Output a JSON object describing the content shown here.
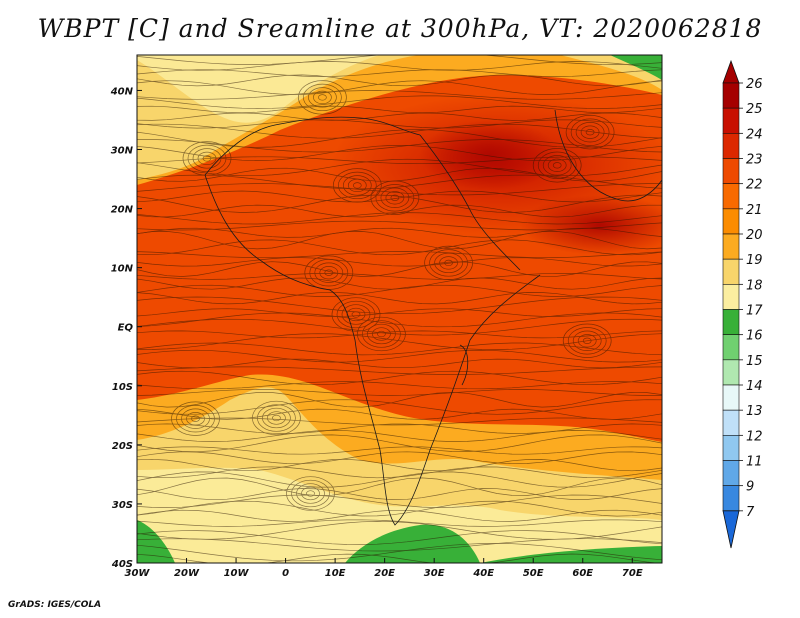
{
  "title": "WBPT [C] and Sreamline at 300hPa, VT: 2020062818",
  "footer": "GrADS: IGES/COLA",
  "map": {
    "lon_range": [
      -30,
      76
    ],
    "lat_range": [
      -40,
      46
    ],
    "lon_ticks": [
      {
        "value": -30,
        "label": "30W"
      },
      {
        "value": -20,
        "label": "20W"
      },
      {
        "value": -10,
        "label": "10W"
      },
      {
        "value": 0,
        "label": "0"
      },
      {
        "value": 10,
        "label": "10E"
      },
      {
        "value": 20,
        "label": "20E"
      },
      {
        "value": 30,
        "label": "30E"
      },
      {
        "value": 40,
        "label": "40E"
      },
      {
        "value": 50,
        "label": "50E"
      },
      {
        "value": 60,
        "label": "60E"
      },
      {
        "value": 70,
        "label": "70E"
      }
    ],
    "lat_ticks": [
      {
        "value": 40,
        "label": "40N"
      },
      {
        "value": 30,
        "label": "30N"
      },
      {
        "value": 20,
        "label": "20N"
      },
      {
        "value": 10,
        "label": "10N"
      },
      {
        "value": 0,
        "label": "EQ"
      },
      {
        "value": -10,
        "label": "10S"
      },
      {
        "value": -20,
        "label": "20S"
      },
      {
        "value": -30,
        "label": "30S"
      },
      {
        "value": -40,
        "label": "40S"
      }
    ]
  },
  "colorbar": {
    "levels": [
      "26",
      "25",
      "24",
      "23",
      "22",
      "21",
      "20",
      "19",
      "18",
      "17",
      "16",
      "15",
      "14",
      "13",
      "12",
      "11",
      "9",
      "7"
    ],
    "colors": [
      "#a50000",
      "#c80f00",
      "#dc2800",
      "#ee4a00",
      "#f86a00",
      "#fb8c00",
      "#fcab20",
      "#f8d56b",
      "#fbeea0",
      "#38b038",
      "#70d070",
      "#b0e8b0",
      "#e8f8f8",
      "#c0e0f8",
      "#90c8f0",
      "#60a8e8",
      "#3888e0",
      "#1a68d8"
    ]
  }
}
